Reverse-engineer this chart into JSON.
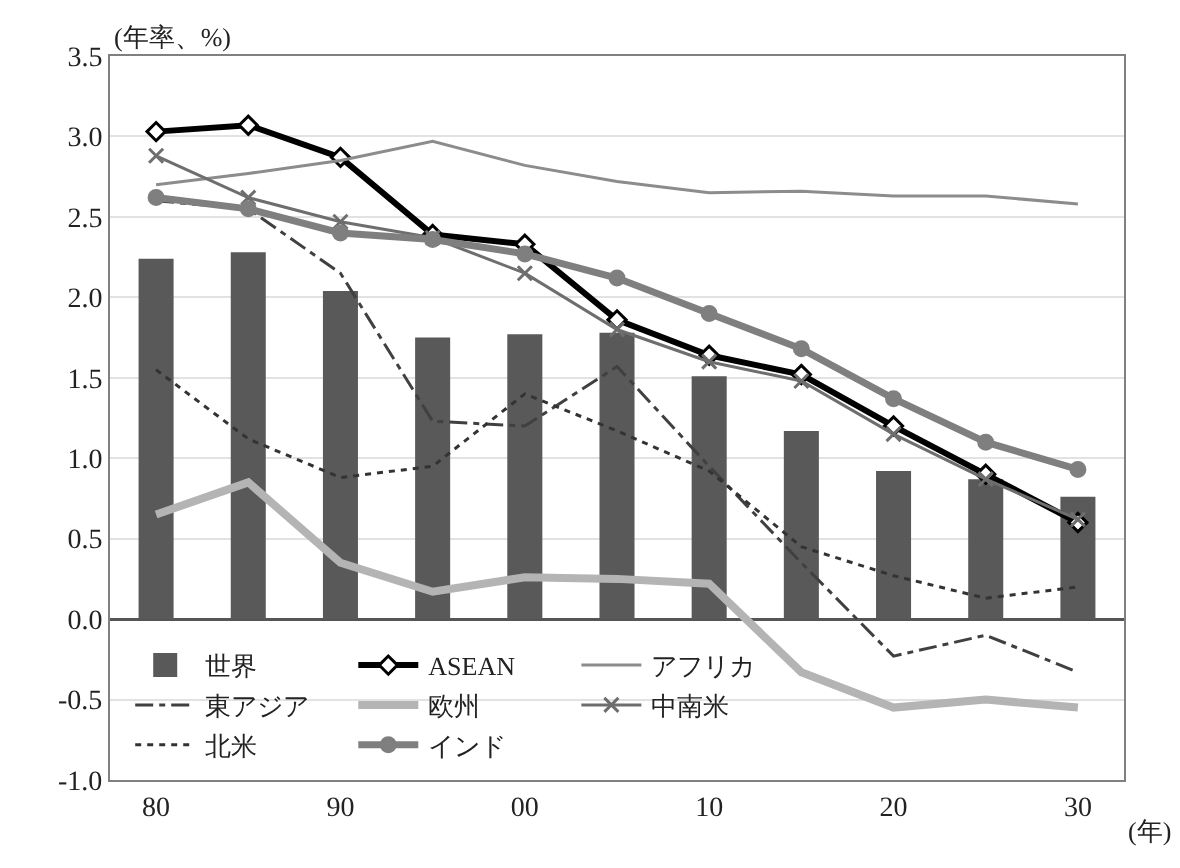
{
  "chart_data": {
    "type": "bar",
    "ylabel": "(年率、%)",
    "xlabel": "(年)",
    "categories": [
      "80",
      null,
      "90",
      null,
      "00",
      null,
      "10",
      null,
      "20",
      null,
      "30"
    ],
    "ylim": [
      -1.0,
      3.5
    ],
    "yticks": [
      {
        "value": -1.0,
        "label": "-1.0"
      },
      {
        "value": -0.5,
        "label": "-0.5"
      },
      {
        "value": 0,
        "label": "0.0"
      },
      {
        "value": 0.5,
        "label": "0.5"
      },
      {
        "value": 1.0,
        "label": "1.0"
      },
      {
        "value": 1.5,
        "label": "1.5"
      },
      {
        "value": 2.0,
        "label": "2.0"
      },
      {
        "value": 2.5,
        "label": "2.5"
      },
      {
        "value": 3.0,
        "label": "3.0"
      },
      {
        "value": 3.5,
        "label": "3.5"
      }
    ],
    "grid": "y",
    "legend": "bottom left",
    "series": [
      {
        "name": "世界",
        "type": "bar",
        "color": "#595959",
        "values": [
          2.24,
          2.28,
          2.04,
          1.75,
          1.77,
          1.78,
          1.51,
          1.17,
          0.92,
          0.87,
          0.76
        ]
      },
      {
        "name": "ASEAN",
        "type": "line",
        "color": "#000000",
        "marker": "diamond",
        "line_style": "solid",
        "values": [
          3.03,
          3.07,
          2.87,
          2.39,
          2.33,
          1.86,
          1.64,
          1.52,
          1.2,
          0.9,
          0.6
        ]
      },
      {
        "name": "アフリカ",
        "type": "line",
        "color": "#8c8c8c",
        "marker": "none",
        "line_style": "solid",
        "values": [
          2.7,
          2.77,
          2.85,
          2.97,
          2.82,
          2.72,
          2.65,
          2.66,
          2.63,
          2.63,
          2.58
        ]
      },
      {
        "name": "東アジア",
        "type": "line",
        "color": "#404040",
        "marker": "none",
        "line_style": "dashed",
        "values": [
          2.6,
          2.55,
          2.15,
          1.23,
          1.2,
          1.57,
          0.95,
          0.35,
          -0.23,
          -0.1,
          -0.33
        ]
      },
      {
        "name": "欧州",
        "type": "line",
        "color": "#b4b4b4",
        "marker": "none",
        "line_style": "solid",
        "values": [
          0.65,
          0.85,
          0.35,
          0.17,
          0.26,
          0.25,
          0.22,
          -0.33,
          -0.55,
          -0.5,
          -0.55
        ]
      },
      {
        "name": "中南米",
        "type": "line",
        "color": "#6e6e6e",
        "marker": "cross",
        "line_style": "solid",
        "values": [
          2.88,
          2.62,
          2.47,
          2.37,
          2.15,
          1.8,
          1.6,
          1.48,
          1.15,
          0.87,
          0.62
        ]
      },
      {
        "name": "北米",
        "type": "line",
        "color": "#333333",
        "marker": "none",
        "line_style": "dotted",
        "values": [
          1.55,
          1.12,
          0.88,
          0.95,
          1.4,
          1.17,
          0.92,
          0.45,
          0.27,
          0.13,
          0.2
        ]
      },
      {
        "name": "インド",
        "type": "line",
        "color": "#7f7f7f",
        "marker": "circle",
        "line_style": "solid",
        "values": [
          2.62,
          2.55,
          2.4,
          2.36,
          2.27,
          2.12,
          1.9,
          1.68,
          1.37,
          1.1,
          0.93
        ]
      }
    ]
  }
}
